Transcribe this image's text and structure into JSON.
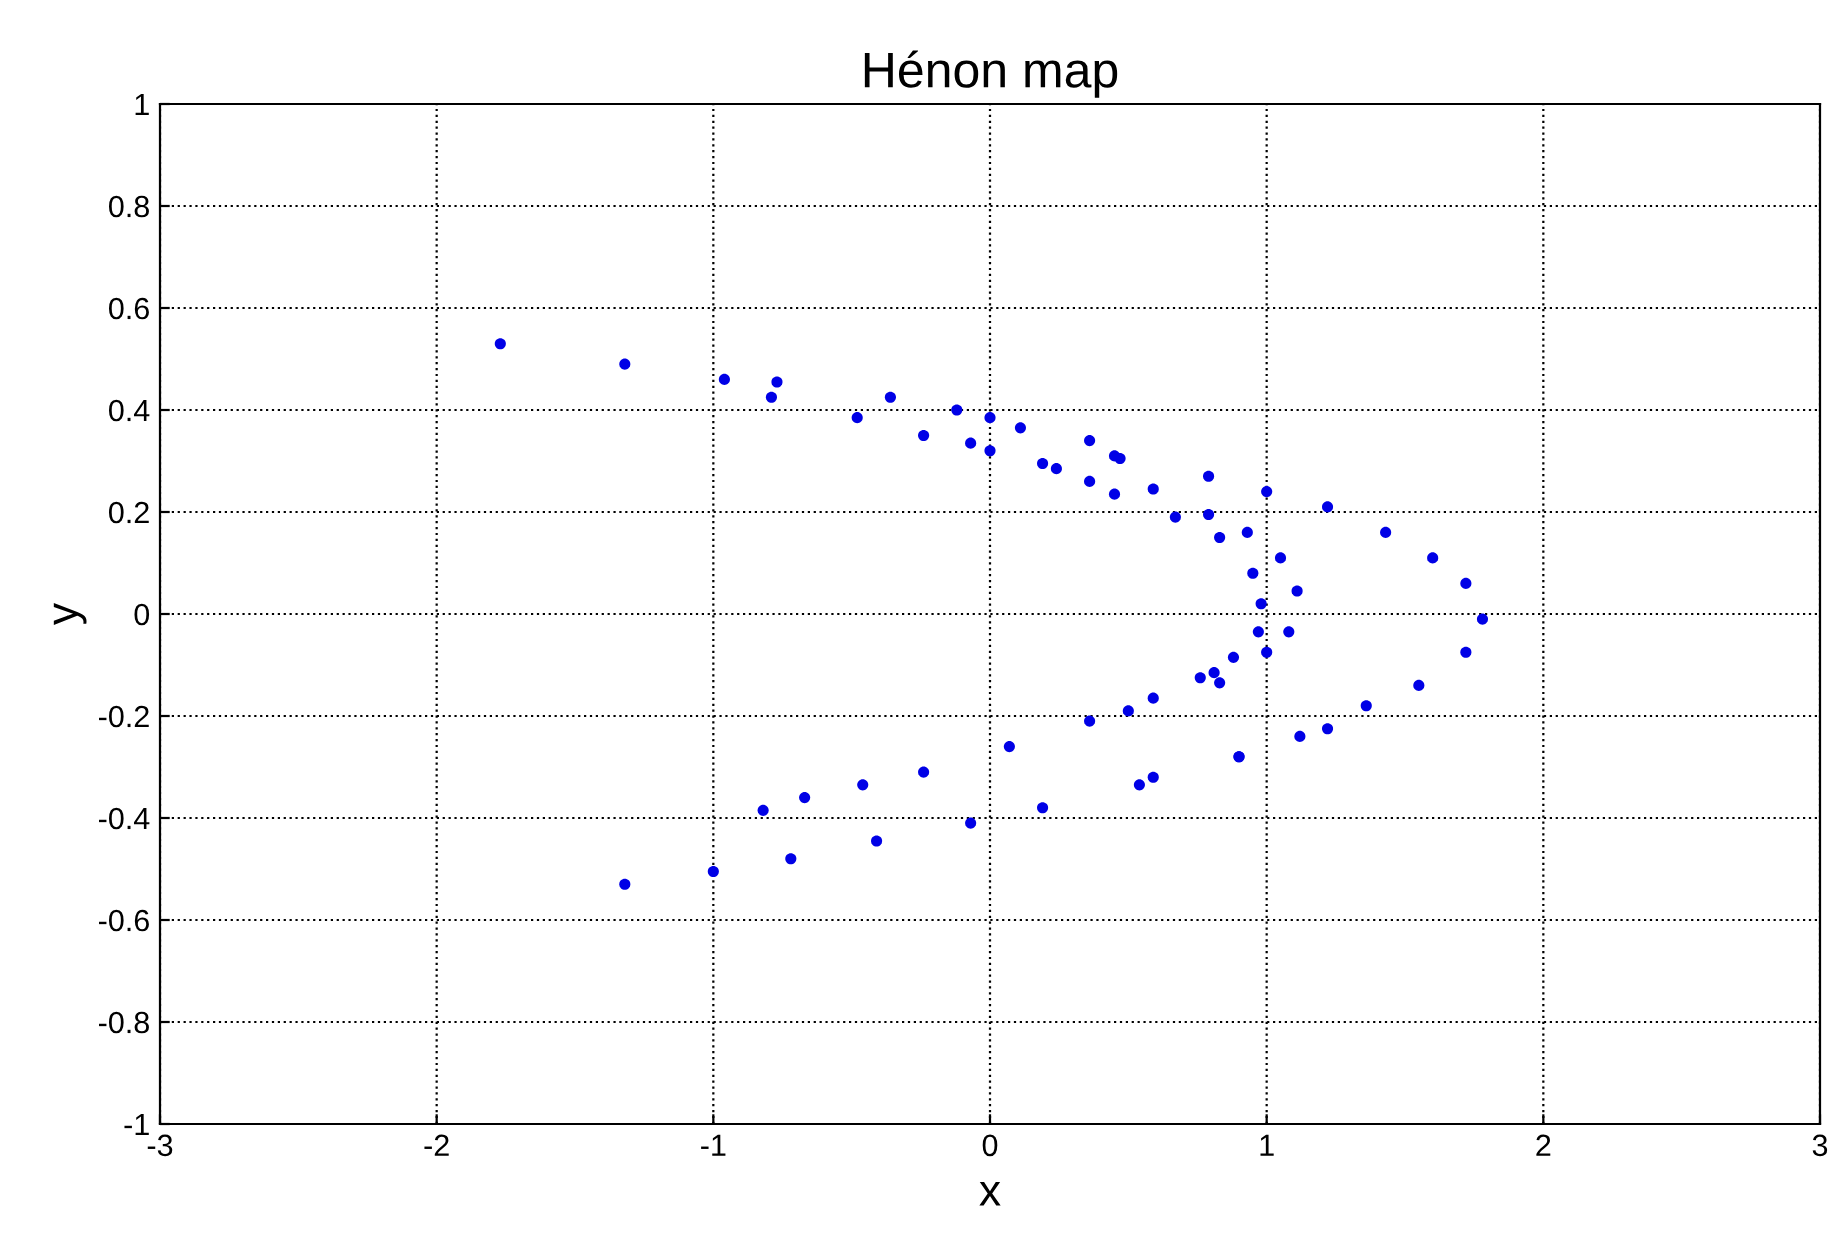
{
  "chart_data": {
    "type": "scatter",
    "title": "Hénon map",
    "xlabel": "x",
    "ylabel": "y",
    "xlim": [
      -3,
      3
    ],
    "xticks": [
      -3,
      -2,
      -1,
      0,
      1,
      2,
      3
    ],
    "ylim": [
      -1,
      1
    ],
    "yticks": [
      -1,
      -0.8,
      -0.6,
      -0.4,
      -0.2,
      0,
      0.2,
      0.4,
      0.6,
      0.8,
      1
    ],
    "grid": true,
    "marker": "circle",
    "series": [
      {
        "color": "#0000e6",
        "x": [
          -1.77,
          -1.32,
          -0.96,
          -0.77,
          -0.36,
          0,
          0.36,
          -0.12,
          0.11,
          0.45,
          0.47,
          0.79,
          1.0,
          1.22,
          1.43,
          1.6,
          1.72,
          1.78,
          1.72,
          1.55,
          1.36,
          1.12,
          0.9,
          0.59,
          -1.32,
          -1.0,
          -0.72,
          -0.41,
          -0.07,
          0.19,
          0.54,
          0.9,
          1.22,
          -0.79,
          -0.48,
          -0.24,
          0,
          0.24,
          0.45,
          0.67,
          0.83,
          0.95,
          0.98,
          0.97,
          0.88,
          0.76,
          0.59,
          0.36,
          0.81,
          0.5,
          0.07,
          -0.24,
          -0.46,
          -0.67,
          -0.82,
          0.59,
          0.79,
          0.93,
          1.05,
          1.11,
          1.08,
          1.0,
          0.83,
          -0.07,
          0.19,
          0.36
        ],
        "values": [
          0.53,
          0.49,
          0.46,
          0.455,
          0.425,
          0.385,
          0.34,
          0.4,
          0.365,
          0.31,
          0.305,
          0.27,
          0.24,
          0.21,
          0.16,
          0.11,
          0.06,
          -0.01,
          -0.075,
          -0.14,
          -0.18,
          -0.24,
          -0.28,
          -0.32,
          -0.53,
          -0.505,
          -0.48,
          -0.445,
          -0.41,
          -0.38,
          -0.335,
          -0.28,
          -0.225,
          0.425,
          0.385,
          0.35,
          0.32,
          0.285,
          0.235,
          0.19,
          0.15,
          0.08,
          0.02,
          -0.035,
          -0.085,
          -0.125,
          -0.165,
          -0.21,
          -0.115,
          -0.19,
          -0.26,
          -0.31,
          -0.335,
          -0.36,
          -0.385,
          0.245,
          0.195,
          0.16,
          0.11,
          0.045,
          -0.035,
          -0.075,
          -0.135,
          0.335,
          0.295,
          0.26
        ]
      }
    ]
  }
}
